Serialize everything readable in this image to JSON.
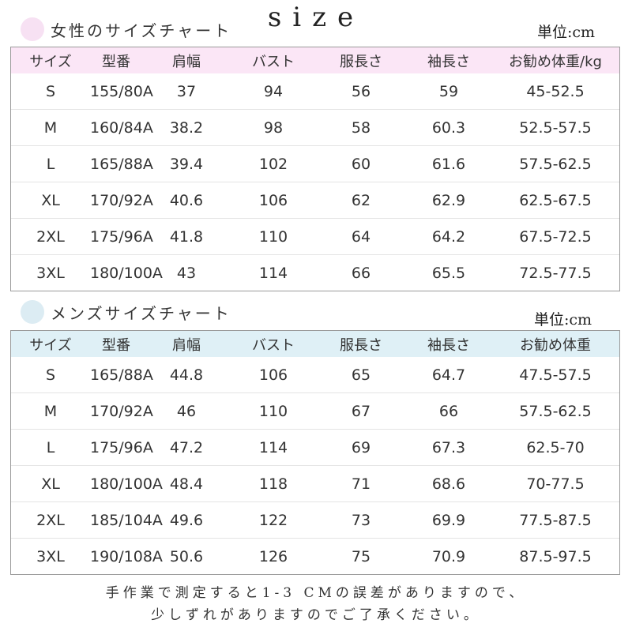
{
  "title": "size",
  "women": {
    "heading": "女性のサイズチャート",
    "unit": "単位:cm",
    "dot_color": "#f7e1f3",
    "header_bg": "#fbe6f6",
    "columns": [
      "サイズ",
      "型番",
      "肩幅",
      "バスト",
      "服長さ",
      "袖長さ",
      "お勧め体重/kg"
    ],
    "rows": [
      [
        "S",
        "155/80A",
        "37",
        "94",
        "56",
        "59",
        "45-52.5"
      ],
      [
        "M",
        "160/84A",
        "38.2",
        "98",
        "58",
        "60.3",
        "52.5-57.5"
      ],
      [
        "L",
        "165/88A",
        "39.4",
        "102",
        "60",
        "61.6",
        "57.5-62.5"
      ],
      [
        "XL",
        "170/92A",
        "40.6",
        "106",
        "62",
        "62.9",
        "62.5-67.5"
      ],
      [
        "2XL",
        "175/96A",
        "41.8",
        "110",
        "64",
        "64.2",
        "67.5-72.5"
      ],
      [
        "3XL",
        "180/100A",
        "43",
        "114",
        "66",
        "65.5",
        "72.5-77.5"
      ]
    ]
  },
  "men": {
    "heading": "メンズサイズチャート",
    "unit": "単位:cm",
    "dot_color": "#dcecf3",
    "header_bg": "#dff0f6",
    "columns": [
      "サイズ",
      "型番",
      "肩幅",
      "バスト",
      "服長さ",
      "袖長さ",
      "お勧め体重"
    ],
    "rows": [
      [
        "S",
        "165/88A",
        "44.8",
        "106",
        "65",
        "64.7",
        "47.5-57.5"
      ],
      [
        "M",
        "170/92A",
        "46",
        "110",
        "67",
        "66",
        "57.5-62.5"
      ],
      [
        "L",
        "175/96A",
        "47.2",
        "114",
        "69",
        "67.3",
        "62.5-70"
      ],
      [
        "XL",
        "180/100A",
        "48.4",
        "118",
        "71",
        "68.6",
        "70-77.5"
      ],
      [
        "2XL",
        "185/104A",
        "49.6",
        "122",
        "73",
        "69.9",
        "77.5-87.5"
      ],
      [
        "3XL",
        "190/108A",
        "50.6",
        "126",
        "75",
        "70.9",
        "87.5-97.5"
      ]
    ]
  },
  "footnote": {
    "line1": "手作業で測定すると1-3 CMの誤差がありますので、",
    "line2": "少しずれがありますのでご了承ください。"
  }
}
